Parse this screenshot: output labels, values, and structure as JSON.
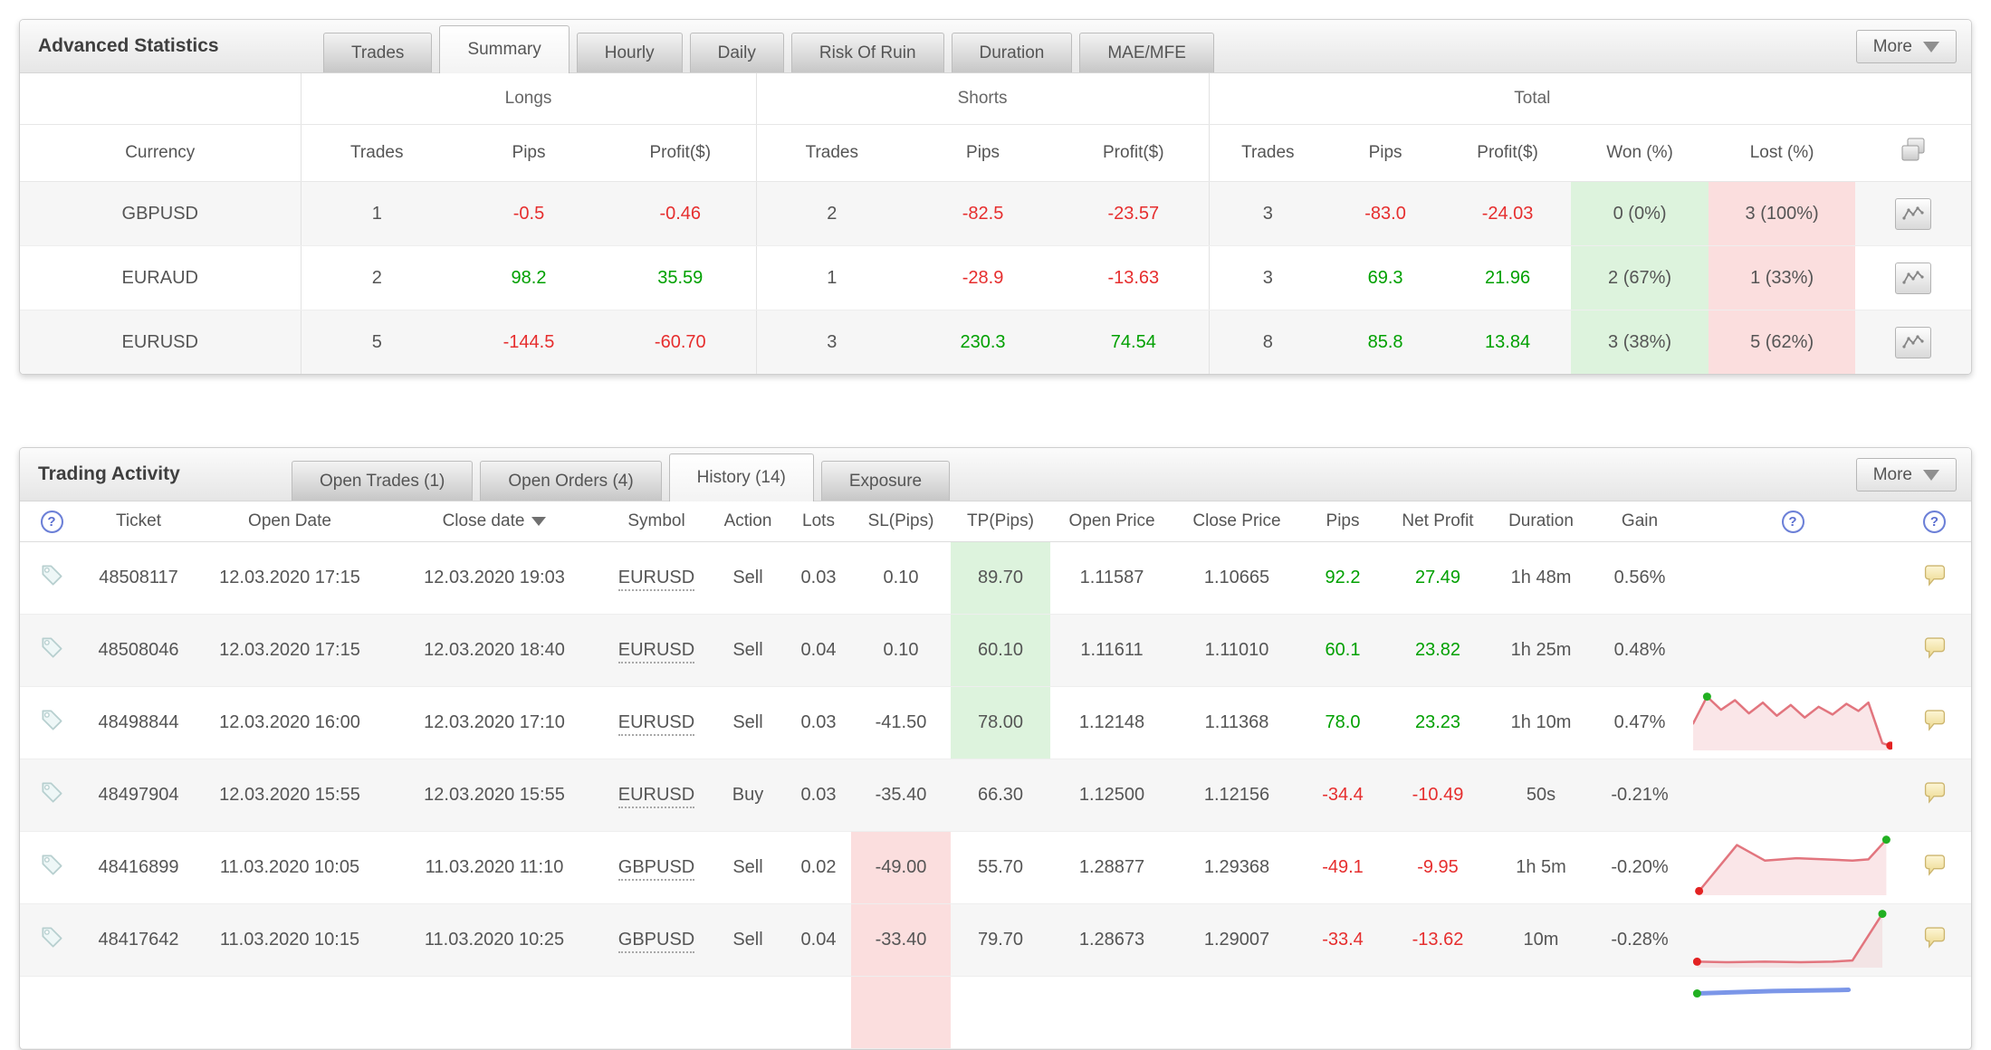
{
  "colors": {
    "pos": "#00a000",
    "neg": "#e62e2e",
    "tp_bg": "#ddf3dd",
    "sl_bg": "#fbdede",
    "won_bg": "#ddf3dd",
    "lost_bg": "#fbdede",
    "spark_red": "#e2757e",
    "spark_blue": "#7b96e8",
    "dot_green": "#21b021",
    "dot_red": "#e32222",
    "accent_blue": "#5c77d9"
  },
  "icons": {
    "help": "?"
  },
  "advanced_statistics": {
    "title": "Advanced Statistics",
    "more_label": "More",
    "tabs": [
      {
        "label": "Trades",
        "active": false
      },
      {
        "label": "Summary",
        "active": true
      },
      {
        "label": "Hourly",
        "active": false
      },
      {
        "label": "Daily",
        "active": false
      },
      {
        "label": "Risk Of Ruin",
        "active": false
      },
      {
        "label": "Duration",
        "active": false
      },
      {
        "label": "MAE/MFE",
        "active": false
      }
    ],
    "group_headers": [
      "Longs",
      "Shorts",
      "Total"
    ],
    "columns": [
      "Currency",
      "Trades",
      "Pips",
      "Profit($)",
      "Trades",
      "Pips",
      "Profit($)",
      "Trades",
      "Pips",
      "Profit($)",
      "Won (%)",
      "Lost (%)"
    ],
    "rows": [
      {
        "currency": "GBPUSD",
        "longs": {
          "trades": "1",
          "pips": "-0.5",
          "profit": "-0.46"
        },
        "shorts": {
          "trades": "2",
          "pips": "-82.5",
          "profit": "-23.57"
        },
        "total": {
          "trades": "3",
          "pips": "-83.0",
          "profit": "-24.03"
        },
        "won": "0 (0%)",
        "lost": "3 (100%)"
      },
      {
        "currency": "EURAUD",
        "longs": {
          "trades": "2",
          "pips": "98.2",
          "profit": "35.59"
        },
        "shorts": {
          "trades": "1",
          "pips": "-28.9",
          "profit": "-13.63"
        },
        "total": {
          "trades": "3",
          "pips": "69.3",
          "profit": "21.96"
        },
        "won": "2 (67%)",
        "lost": "1 (33%)"
      },
      {
        "currency": "EURUSD",
        "longs": {
          "trades": "5",
          "pips": "-144.5",
          "profit": "-60.70"
        },
        "shorts": {
          "trades": "3",
          "pips": "230.3",
          "profit": "74.54"
        },
        "total": {
          "trades": "8",
          "pips": "85.8",
          "profit": "13.84"
        },
        "won": "3 (38%)",
        "lost": "5 (62%)"
      }
    ]
  },
  "trading_activity": {
    "title": "Trading Activity",
    "more_label": "More",
    "tabs": [
      {
        "label": "Open Trades (1)",
        "active": false
      },
      {
        "label": "Open Orders (4)",
        "active": false
      },
      {
        "label": "History (14)",
        "active": true
      },
      {
        "label": "Exposure",
        "active": false
      }
    ],
    "columns": [
      "Ticket",
      "Open Date",
      "Close date",
      "Symbol",
      "Action",
      "Lots",
      "SL(Pips)",
      "TP(Pips)",
      "Open Price",
      "Close Price",
      "Pips",
      "Net Profit",
      "Duration",
      "Gain"
    ],
    "rows": [
      {
        "ticket": "48508117",
        "open_date": "12.03.2020 17:15",
        "close_date": "12.03.2020 19:03",
        "symbol": "EURUSD",
        "action": "Sell",
        "lots": "0.03",
        "sl": "0.10",
        "sl_bg": false,
        "tp": "89.70",
        "tp_bg": true,
        "open_price": "1.11587",
        "close_price": "1.10665",
        "pips": "92.2",
        "net_profit": "27.49",
        "duration": "1h 48m",
        "gain": "0.56%",
        "tag": true,
        "comment": true,
        "spark": null
      },
      {
        "ticket": "48508046",
        "open_date": "12.03.2020 17:15",
        "close_date": "12.03.2020 18:40",
        "symbol": "EURUSD",
        "action": "Sell",
        "lots": "0.04",
        "sl": "0.10",
        "sl_bg": false,
        "tp": "60.10",
        "tp_bg": true,
        "open_price": "1.11611",
        "close_price": "1.11010",
        "pips": "60.1",
        "net_profit": "23.82",
        "duration": "1h 25m",
        "gain": "0.48%",
        "tag": true,
        "comment": true,
        "spark": null
      },
      {
        "ticket": "48498844",
        "open_date": "12.03.2020 16:00",
        "close_date": "12.03.2020 17:10",
        "symbol": "EURUSD",
        "action": "Sell",
        "lots": "0.03",
        "sl": "-41.50",
        "sl_bg": false,
        "tp": "78.00",
        "tp_bg": true,
        "open_price": "1.12148",
        "close_price": "1.11368",
        "pips": "78.0",
        "net_profit": "23.23",
        "duration": "1h 10m",
        "gain": "0.47%",
        "tag": true,
        "comment": true,
        "spark": {
          "color": "spark_red",
          "width": 2.5,
          "fill": "rgba(226,117,126,0.18)",
          "points": [
            [
              0,
              55
            ],
            [
              7,
              10
            ],
            [
              14,
              32
            ],
            [
              21,
              16
            ],
            [
              28,
              38
            ],
            [
              35,
              20
            ],
            [
              42,
              42
            ],
            [
              49,
              24
            ],
            [
              56,
              45
            ],
            [
              63,
              27
            ],
            [
              70,
              40
            ],
            [
              77,
              22
            ],
            [
              83,
              34
            ],
            [
              88,
              20
            ],
            [
              95,
              88
            ],
            [
              99,
              92
            ]
          ],
          "dots": [
            {
              "x": 7,
              "y": 10,
              "color": "dot_green"
            },
            {
              "x": 99,
              "y": 92,
              "color": "dot_red"
            }
          ]
        }
      },
      {
        "ticket": "48497904",
        "open_date": "12.03.2020 15:55",
        "close_date": "12.03.2020 15:55",
        "symbol": "EURUSD",
        "action": "Buy",
        "lots": "0.03",
        "sl": "-35.40",
        "sl_bg": false,
        "tp": "66.30",
        "tp_bg": false,
        "open_price": "1.12500",
        "close_price": "1.12156",
        "pips": "-34.4",
        "net_profit": "-10.49",
        "duration": "50s",
        "gain": "-0.21%",
        "tag": true,
        "comment": true,
        "spark": null
      },
      {
        "ticket": "48416899",
        "open_date": "11.03.2020 10:05",
        "close_date": "11.03.2020 11:10",
        "symbol": "GBPUSD",
        "action": "Sell",
        "lots": "0.02",
        "sl": "-49.00",
        "sl_bg": true,
        "tp": "55.70",
        "tp_bg": false,
        "open_price": "1.28877",
        "close_price": "1.29368",
        "pips": "-49.1",
        "net_profit": "-9.95",
        "duration": "1h 5m",
        "gain": "-0.20%",
        "tag": true,
        "comment": true,
        "spark": {
          "color": "spark_red",
          "width": 2.5,
          "fill": "rgba(226,117,126,0.18)",
          "points": [
            [
              3,
              93
            ],
            [
              22,
              16
            ],
            [
              36,
              42
            ],
            [
              52,
              38
            ],
            [
              66,
              40
            ],
            [
              80,
              42
            ],
            [
              88,
              40
            ],
            [
              97,
              7
            ]
          ],
          "dots": [
            {
              "x": 3,
              "y": 93,
              "color": "dot_red"
            },
            {
              "x": 97,
              "y": 7,
              "color": "dot_green"
            }
          ]
        }
      },
      {
        "ticket": "48417642",
        "open_date": "11.03.2020 10:15",
        "close_date": "11.03.2020 10:25",
        "symbol": "GBPUSD",
        "action": "Sell",
        "lots": "0.04",
        "sl": "-33.40",
        "sl_bg": true,
        "tp": "79.70",
        "tp_bg": false,
        "open_price": "1.28673",
        "close_price": "1.29007",
        "pips": "-33.4",
        "net_profit": "-13.62",
        "duration": "10m",
        "gain": "-0.28%",
        "tag": true,
        "comment": true,
        "spark": {
          "color": "spark_red",
          "width": 2.5,
          "fill": "rgba(226,117,126,0.14)",
          "points": [
            [
              2,
              90
            ],
            [
              18,
              91
            ],
            [
              36,
              90
            ],
            [
              54,
              91
            ],
            [
              70,
              90
            ],
            [
              80,
              88
            ],
            [
              95,
              10
            ]
          ],
          "dots": [
            {
              "x": 2,
              "y": 90,
              "color": "dot_red"
            },
            {
              "x": 95,
              "y": 10,
              "color": "dot_green"
            }
          ]
        }
      },
      {
        "ticket": "",
        "open_date": "",
        "close_date": "",
        "symbol": "",
        "action": "",
        "lots": "",
        "sl": "",
        "sl_bg": true,
        "tp": "",
        "tp_bg": false,
        "open_price": "",
        "close_price": "",
        "pips": "",
        "net_profit": "",
        "duration": "",
        "gain": "",
        "tag": false,
        "comment": false,
        "spark": {
          "color": "spark_blue",
          "width": 5,
          "fill": "rgba(123,150,232,0.0)",
          "points": [
            [
              2,
              22
            ],
            [
              40,
              18
            ],
            [
              78,
              16
            ]
          ],
          "dots": [
            {
              "x": 2,
              "y": 22,
              "color": "dot_green"
            }
          ]
        }
      }
    ]
  }
}
